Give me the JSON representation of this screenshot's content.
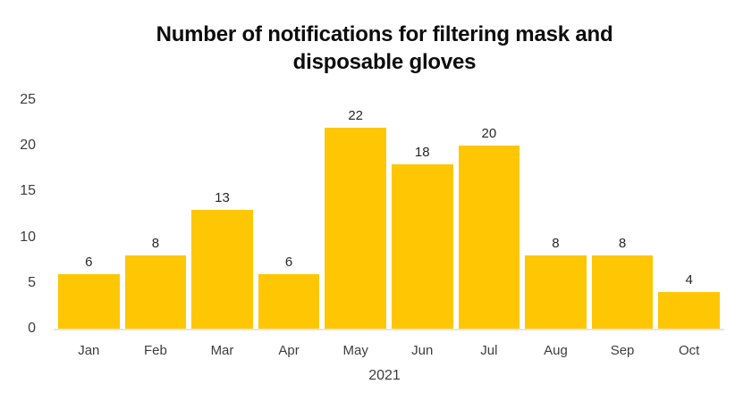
{
  "chart_data": {
    "type": "bar",
    "title": "Number of notifications for filtering mask and disposable gloves",
    "title_lines": [
      "Number of notifications for filtering mask and",
      "disposable gloves"
    ],
    "categories": [
      "Jan",
      "Feb",
      "Mar",
      "Apr",
      "May",
      "Jun",
      "Jul",
      "Aug",
      "Sep",
      "Oct"
    ],
    "values": [
      6,
      8,
      13,
      6,
      22,
      18,
      20,
      8,
      8,
      4
    ],
    "xlabel": "2021",
    "ylabel": "",
    "ylim": [
      0,
      25
    ],
    "yticks": [
      0,
      5,
      10,
      15,
      20,
      25
    ],
    "grid": false,
    "legend": "none",
    "data_labels_shown": true
  },
  "colors": {
    "bar": "#FFC603",
    "title_text": "#0D0D0D",
    "axis_text": "#3D3D3D",
    "data_label_text": "#262626",
    "baseline": "#EDE1E3",
    "background": "#FFFFFF"
  }
}
